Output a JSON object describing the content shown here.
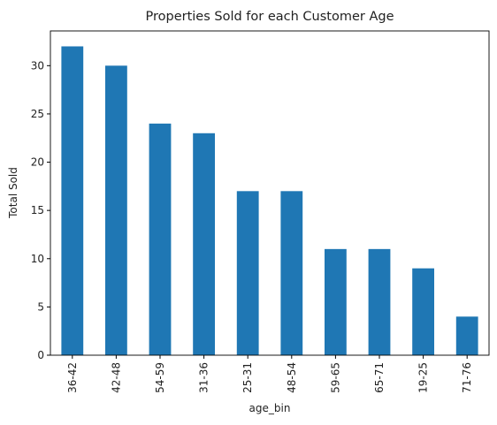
{
  "chart_data": {
    "type": "bar",
    "title": "Properties Sold for each Customer Age",
    "xlabel": "age_bin",
    "ylabel": "Total Sold",
    "categories": [
      "36-42",
      "42-48",
      "54-59",
      "31-36",
      "25-31",
      "48-54",
      "59-65",
      "65-71",
      "19-25",
      "71-76"
    ],
    "values": [
      32,
      30,
      24,
      23,
      17,
      17,
      11,
      11,
      9,
      4
    ],
    "ylim": [
      0,
      33.6
    ],
    "yticks": [
      0,
      5,
      10,
      15,
      20,
      25,
      30
    ],
    "grid": false,
    "legend": "none",
    "bar_color": "#1f77b4",
    "axis_color": "#000000"
  }
}
